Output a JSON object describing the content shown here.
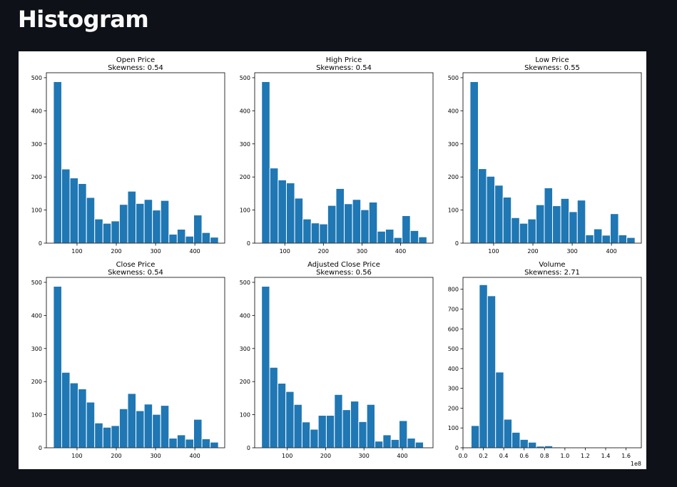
{
  "page": {
    "heading": "Histogram"
  },
  "chart_data": [
    {
      "type": "bar",
      "title": "Open Price",
      "subtitle": "Skewness: 0.54",
      "x_range": [
        22,
        476
      ],
      "x_ticks": [
        100,
        200,
        300,
        400
      ],
      "y_range": [
        0,
        515
      ],
      "y_ticks": [
        0,
        100,
        200,
        300,
        400,
        500
      ],
      "bins": [
        {
          "x0": 40,
          "x1": 61,
          "count": 488
        },
        {
          "x0": 61,
          "x1": 82,
          "count": 224
        },
        {
          "x0": 82,
          "x1": 103,
          "count": 197
        },
        {
          "x0": 103,
          "x1": 124,
          "count": 180
        },
        {
          "x0": 124,
          "x1": 145,
          "count": 138
        },
        {
          "x0": 145,
          "x1": 166,
          "count": 73
        },
        {
          "x0": 166,
          "x1": 187,
          "count": 60
        },
        {
          "x0": 187,
          "x1": 208,
          "count": 67
        },
        {
          "x0": 208,
          "x1": 229,
          "count": 117
        },
        {
          "x0": 229,
          "x1": 250,
          "count": 157
        },
        {
          "x0": 250,
          "x1": 271,
          "count": 120
        },
        {
          "x0": 271,
          "x1": 292,
          "count": 132
        },
        {
          "x0": 292,
          "x1": 313,
          "count": 100
        },
        {
          "x0": 313,
          "x1": 334,
          "count": 129
        },
        {
          "x0": 334,
          "x1": 355,
          "count": 27
        },
        {
          "x0": 355,
          "x1": 376,
          "count": 42
        },
        {
          "x0": 376,
          "x1": 397,
          "count": 21
        },
        {
          "x0": 397,
          "x1": 418,
          "count": 85
        },
        {
          "x0": 418,
          "x1": 439,
          "count": 32
        },
        {
          "x0": 439,
          "x1": 460,
          "count": 18
        }
      ]
    },
    {
      "type": "bar",
      "title": "High Price",
      "subtitle": "Skewness: 0.54",
      "x_range": [
        22,
        484
      ],
      "x_ticks": [
        100,
        200,
        300,
        400
      ],
      "y_range": [
        0,
        515
      ],
      "y_ticks": [
        0,
        100,
        200,
        300,
        400,
        500
      ],
      "bins": [
        {
          "x0": 40,
          "x1": 61.4,
          "count": 488
        },
        {
          "x0": 61.4,
          "x1": 82.8,
          "count": 227
        },
        {
          "x0": 82.8,
          "x1": 104.2,
          "count": 191
        },
        {
          "x0": 104.2,
          "x1": 125.6,
          "count": 182
        },
        {
          "x0": 125.6,
          "x1": 147,
          "count": 136
        },
        {
          "x0": 147,
          "x1": 168.4,
          "count": 73
        },
        {
          "x0": 168.4,
          "x1": 189.8,
          "count": 61
        },
        {
          "x0": 189.8,
          "x1": 211.2,
          "count": 58
        },
        {
          "x0": 211.2,
          "x1": 232.6,
          "count": 114
        },
        {
          "x0": 232.6,
          "x1": 254,
          "count": 165
        },
        {
          "x0": 254,
          "x1": 275.4,
          "count": 119
        },
        {
          "x0": 275.4,
          "x1": 296.8,
          "count": 132
        },
        {
          "x0": 296.8,
          "x1": 318.2,
          "count": 101
        },
        {
          "x0": 318.2,
          "x1": 339.6,
          "count": 124
        },
        {
          "x0": 339.6,
          "x1": 361,
          "count": 36
        },
        {
          "x0": 361,
          "x1": 382.4,
          "count": 42
        },
        {
          "x0": 382.4,
          "x1": 403.8,
          "count": 17
        },
        {
          "x0": 403.8,
          "x1": 425.2,
          "count": 83
        },
        {
          "x0": 425.2,
          "x1": 446.6,
          "count": 38
        },
        {
          "x0": 446.6,
          "x1": 468,
          "count": 19
        }
      ]
    },
    {
      "type": "bar",
      "title": "Low Price",
      "subtitle": "Skewness: 0.55",
      "x_range": [
        22,
        476
      ],
      "x_ticks": [
        100,
        200,
        300,
        400
      ],
      "y_range": [
        0,
        515
      ],
      "y_ticks": [
        0,
        100,
        200,
        300,
        400,
        500
      ],
      "bins": [
        {
          "x0": 40,
          "x1": 61,
          "count": 488
        },
        {
          "x0": 61,
          "x1": 82,
          "count": 225
        },
        {
          "x0": 82,
          "x1": 103,
          "count": 202
        },
        {
          "x0": 103,
          "x1": 124,
          "count": 175
        },
        {
          "x0": 124,
          "x1": 145,
          "count": 139
        },
        {
          "x0": 145,
          "x1": 166,
          "count": 77
        },
        {
          "x0": 166,
          "x1": 187,
          "count": 60
        },
        {
          "x0": 187,
          "x1": 208,
          "count": 73
        },
        {
          "x0": 208,
          "x1": 229,
          "count": 116
        },
        {
          "x0": 229,
          "x1": 250,
          "count": 167
        },
        {
          "x0": 250,
          "x1": 271,
          "count": 113
        },
        {
          "x0": 271,
          "x1": 292,
          "count": 135
        },
        {
          "x0": 292,
          "x1": 313,
          "count": 95
        },
        {
          "x0": 313,
          "x1": 334,
          "count": 130
        },
        {
          "x0": 334,
          "x1": 355,
          "count": 25
        },
        {
          "x0": 355,
          "x1": 376,
          "count": 43
        },
        {
          "x0": 376,
          "x1": 397,
          "count": 24
        },
        {
          "x0": 397,
          "x1": 418,
          "count": 89
        },
        {
          "x0": 418,
          "x1": 439,
          "count": 25
        },
        {
          "x0": 439,
          "x1": 460,
          "count": 17
        }
      ]
    },
    {
      "type": "bar",
      "title": "Close Price",
      "subtitle": "Skewness: 0.54",
      "x_range": [
        22,
        476
      ],
      "x_ticks": [
        100,
        200,
        300,
        400
      ],
      "y_range": [
        0,
        515
      ],
      "y_ticks": [
        0,
        100,
        200,
        300,
        400,
        500
      ],
      "bins": [
        {
          "x0": 40,
          "x1": 61,
          "count": 488
        },
        {
          "x0": 61,
          "x1": 82,
          "count": 228
        },
        {
          "x0": 82,
          "x1": 103,
          "count": 196
        },
        {
          "x0": 103,
          "x1": 124,
          "count": 178
        },
        {
          "x0": 124,
          "x1": 145,
          "count": 138
        },
        {
          "x0": 145,
          "x1": 166,
          "count": 75
        },
        {
          "x0": 166,
          "x1": 187,
          "count": 62
        },
        {
          "x0": 187,
          "x1": 208,
          "count": 67
        },
        {
          "x0": 208,
          "x1": 229,
          "count": 118
        },
        {
          "x0": 229,
          "x1": 250,
          "count": 164
        },
        {
          "x0": 250,
          "x1": 271,
          "count": 112
        },
        {
          "x0": 271,
          "x1": 292,
          "count": 132
        },
        {
          "x0": 292,
          "x1": 313,
          "count": 101
        },
        {
          "x0": 313,
          "x1": 334,
          "count": 128
        },
        {
          "x0": 334,
          "x1": 355,
          "count": 29
        },
        {
          "x0": 355,
          "x1": 376,
          "count": 39
        },
        {
          "x0": 376,
          "x1": 397,
          "count": 26
        },
        {
          "x0": 397,
          "x1": 418,
          "count": 86
        },
        {
          "x0": 418,
          "x1": 439,
          "count": 27
        },
        {
          "x0": 439,
          "x1": 460,
          "count": 17
        }
      ]
    },
    {
      "type": "bar",
      "title": "Adjusted Close Price",
      "subtitle": "Skewness: 0.56",
      "x_range": [
        15,
        480
      ],
      "x_ticks": [
        100,
        200,
        300,
        400
      ],
      "y_range": [
        0,
        515
      ],
      "y_ticks": [
        0,
        100,
        200,
        300,
        400,
        500
      ],
      "bins": [
        {
          "x0": 33,
          "x1": 54.1,
          "count": 488
        },
        {
          "x0": 54.1,
          "x1": 75.2,
          "count": 243
        },
        {
          "x0": 75.2,
          "x1": 96.3,
          "count": 195
        },
        {
          "x0": 96.3,
          "x1": 117.4,
          "count": 170
        },
        {
          "x0": 117.4,
          "x1": 138.5,
          "count": 131
        },
        {
          "x0": 138.5,
          "x1": 159.6,
          "count": 78
        },
        {
          "x0": 159.6,
          "x1": 180.7,
          "count": 56
        },
        {
          "x0": 180.7,
          "x1": 201.8,
          "count": 98
        },
        {
          "x0": 201.8,
          "x1": 222.9,
          "count": 98
        },
        {
          "x0": 222.9,
          "x1": 244,
          "count": 161
        },
        {
          "x0": 244,
          "x1": 265.1,
          "count": 115
        },
        {
          "x0": 265.1,
          "x1": 286.2,
          "count": 141
        },
        {
          "x0": 286.2,
          "x1": 307.3,
          "count": 79
        },
        {
          "x0": 307.3,
          "x1": 328.4,
          "count": 131
        },
        {
          "x0": 328.4,
          "x1": 349.5,
          "count": 20
        },
        {
          "x0": 349.5,
          "x1": 370.6,
          "count": 39
        },
        {
          "x0": 370.6,
          "x1": 391.7,
          "count": 25
        },
        {
          "x0": 391.7,
          "x1": 412.8,
          "count": 82
        },
        {
          "x0": 412.8,
          "x1": 433.9,
          "count": 29
        },
        {
          "x0": 433.9,
          "x1": 455,
          "count": 17
        }
      ]
    },
    {
      "type": "bar",
      "title": "Volume",
      "subtitle": "Skewness: 2.71",
      "x_range": [
        0,
        1.75
      ],
      "x_ticks": [
        0.0,
        0.2,
        0.4,
        0.6,
        0.8,
        1.0,
        1.2,
        1.4,
        1.6
      ],
      "x_tick_labels": [
        "0.0",
        "0.2",
        "0.4",
        "0.6",
        "0.8",
        "1.0",
        "1.2",
        "1.4",
        "1.6"
      ],
      "x_offset_label": "1e8",
      "y_range": [
        0,
        860
      ],
      "y_ticks": [
        0,
        100,
        200,
        300,
        400,
        500,
        600,
        700,
        800
      ],
      "bins": [
        {
          "x0": 0.08,
          "x1": 0.16,
          "count": 112
        },
        {
          "x0": 0.16,
          "x1": 0.24,
          "count": 823
        },
        {
          "x0": 0.24,
          "x1": 0.32,
          "count": 767
        },
        {
          "x0": 0.32,
          "x1": 0.4,
          "count": 382
        },
        {
          "x0": 0.4,
          "x1": 0.48,
          "count": 144
        },
        {
          "x0": 0.48,
          "x1": 0.56,
          "count": 78
        },
        {
          "x0": 0.56,
          "x1": 0.64,
          "count": 42
        },
        {
          "x0": 0.64,
          "x1": 0.72,
          "count": 28
        },
        {
          "x0": 0.72,
          "x1": 0.8,
          "count": 8
        },
        {
          "x0": 0.8,
          "x1": 0.88,
          "count": 10
        },
        {
          "x0": 0.88,
          "x1": 0.96,
          "count": 4
        },
        {
          "x0": 0.96,
          "x1": 1.04,
          "count": 2
        },
        {
          "x0": 1.04,
          "x1": 1.12,
          "count": 1
        },
        {
          "x0": 1.12,
          "x1": 1.2,
          "count": 1
        },
        {
          "x0": 1.2,
          "x1": 1.28,
          "count": 1
        },
        {
          "x0": 1.28,
          "x1": 1.36,
          "count": 0
        },
        {
          "x0": 1.36,
          "x1": 1.44,
          "count": 1
        },
        {
          "x0": 1.44,
          "x1": 1.52,
          "count": 0
        },
        {
          "x0": 1.52,
          "x1": 1.6,
          "count": 0
        },
        {
          "x0": 1.6,
          "x1": 1.68,
          "count": 1
        }
      ]
    }
  ],
  "colors": {
    "bar_fill": "#1f77b4",
    "bar_edge": "#ffffff",
    "page_bg": "#0e1117",
    "heading": "#fafafa"
  }
}
